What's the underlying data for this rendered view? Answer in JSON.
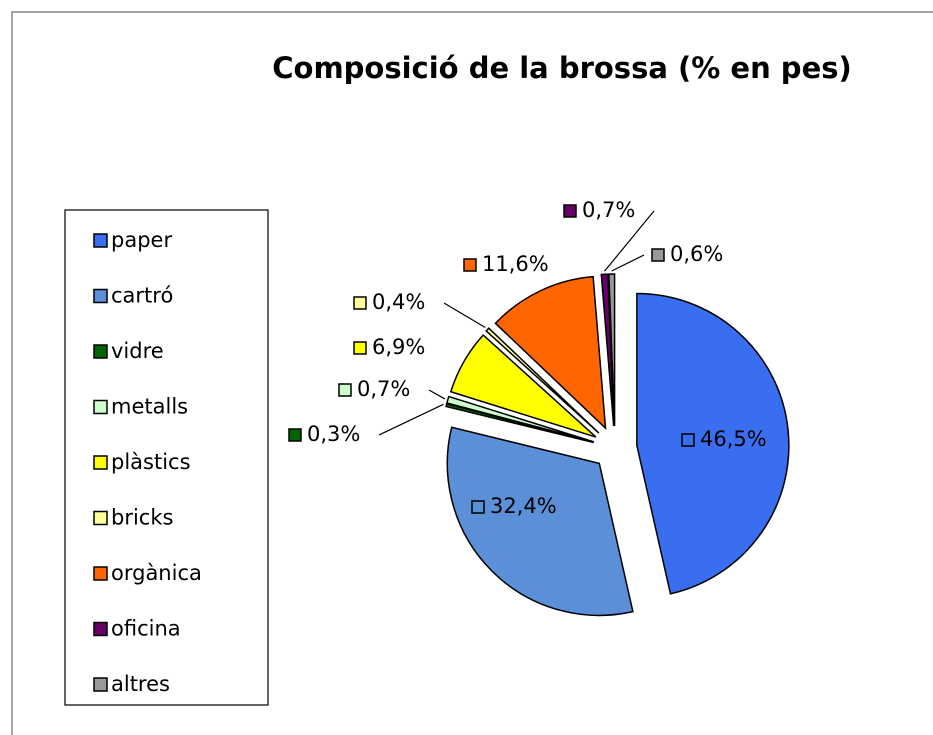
{
  "chart_data": {
    "type": "pie",
    "title": "Composició de la brossa (% en pes)",
    "categories": [
      "paper",
      "cartró",
      "vidre",
      "metalls",
      "plàstics",
      "bricks",
      "orgànica",
      "oficina",
      "altres"
    ],
    "values": [
      46.5,
      32.4,
      0.3,
      0.7,
      6.9,
      0.4,
      11.6,
      0.7,
      0.6
    ],
    "value_labels": [
      "46,5%",
      "32,4%",
      "0,3%",
      "0,7%",
      "6,9%",
      "0,4%",
      "11,6%",
      "0,7%",
      "0,6%"
    ],
    "colors": [
      "#3a6ef0",
      "#5b8fd8",
      "#006400",
      "#ccffcc",
      "#ffff00",
      "#ffff99",
      "#ff6600",
      "#660066",
      "#999999"
    ],
    "legend": "left"
  }
}
